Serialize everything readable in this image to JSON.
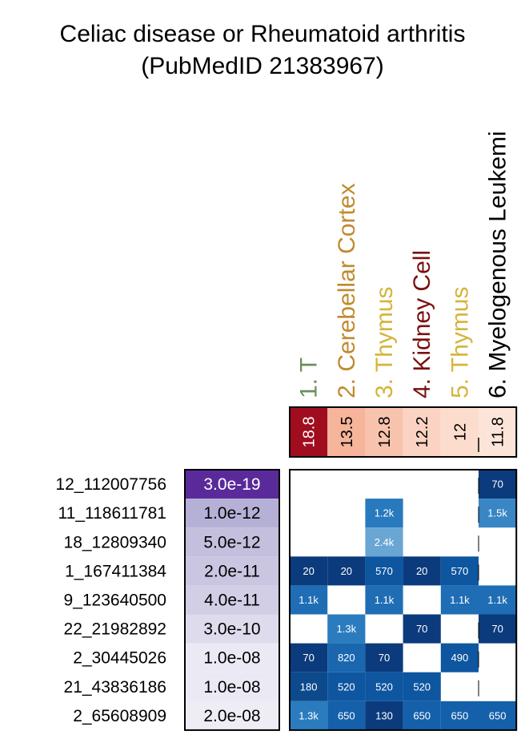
{
  "chart_data": {
    "type": "heatmap",
    "title": "Celiac disease or Rheumatoid arthritis",
    "subtitle": "(PubMedID 21383967)",
    "columns": [
      {
        "label": "1. T",
        "color": "#6a8f5a",
        "enrichment": "18.8",
        "fill": "#a00d1f",
        "text_color": "#ffffff"
      },
      {
        "label": "2. Cerebellar Cortex",
        "color": "#c08a2e",
        "enrichment": "13.5",
        "fill": "#f6b49a",
        "text_color": "#000000"
      },
      {
        "label": "3. Thymus",
        "color": "#d6b43a",
        "enrichment": "12.8",
        "fill": "#f8c3ac",
        "text_color": "#000000"
      },
      {
        "label": "4. Kidney Cell",
        "color": "#7a1010",
        "enrichment": "12.2",
        "fill": "#fbd3c2",
        "text_color": "#000000"
      },
      {
        "label": "5. Thymus",
        "color": "#d6b43a",
        "enrichment": "12",
        "fill": "#fcdccd",
        "text_color": "#000000"
      },
      {
        "label": "6. Myelogenous Leukemi",
        "color": "#000000",
        "enrichment": "11.8",
        "fill": "#fde4d8",
        "text_color": "#000000"
      }
    ],
    "rows": [
      {
        "snp": "12_112007756",
        "pvalue": "3.0e-19",
        "pfill": "#5a2a9a",
        "ptext": "#ffffff",
        "cells": [
          "",
          "",
          "",
          "",
          "",
          "70"
        ]
      },
      {
        "snp": "11_118611781",
        "pvalue": "1.0e-12",
        "pfill": "#b5b0d6",
        "ptext": "#000000",
        "cells": [
          "",
          "",
          "1.2k",
          "",
          "",
          "1.5k"
        ]
      },
      {
        "snp": "18_12809340",
        "pvalue": "5.0e-12",
        "pfill": "#c3bfdd",
        "ptext": "#000000",
        "cells": [
          "",
          "",
          "2.4k",
          "",
          "",
          ""
        ]
      },
      {
        "snp": "1_167411384",
        "pvalue": "2.0e-11",
        "pfill": "#cac6e2",
        "ptext": "#000000",
        "cells": [
          "20",
          "20",
          "570",
          "20",
          "570",
          ""
        ]
      },
      {
        "snp": "9_123640500",
        "pvalue": "4.0e-11",
        "pfill": "#d1cee6",
        "ptext": "#000000",
        "cells": [
          "1.1k",
          "",
          "1.1k",
          "",
          "1.1k",
          "1.1k"
        ]
      },
      {
        "snp": "22_21982892",
        "pvalue": "3.0e-10",
        "pfill": "#dddbec",
        "ptext": "#000000",
        "cells": [
          "",
          "1.3k",
          "",
          "70",
          "",
          "70"
        ]
      },
      {
        "snp": "2_30445026",
        "pvalue": "1.0e-08",
        "pfill": "#ebeaf4",
        "ptext": "#000000",
        "cells": [
          "70",
          "820",
          "70",
          "",
          "490",
          ""
        ]
      },
      {
        "snp": "21_43836186",
        "pvalue": "1.0e-08",
        "pfill": "#ebeaf4",
        "ptext": "#000000",
        "cells": [
          "180",
          "520",
          "520",
          "520",
          "",
          ""
        ]
      },
      {
        "snp": "2_65608909",
        "pvalue": "2.0e-08",
        "pfill": "#eeedf6",
        "ptext": "#000000",
        "cells": [
          "1.3k",
          "650",
          "130",
          "650",
          "650",
          "650"
        ]
      }
    ],
    "cell_colors": {
      "20": "#0b3b7c",
      "70": "#0b3b7c",
      "130": "#0b3b7c",
      "180": "#0c4a8c",
      "490": "#0e56a0",
      "520": "#0e56a0",
      "570": "#0e56a0",
      "650": "#1560aa",
      "820": "#1a67b0",
      "1.1k": "#1f6eb5",
      "1.2k": "#2879bd",
      "1.3k": "#2a7cbf",
      "1.5k": "#3886c4",
      "2.4k": "#6aa6d4"
    }
  }
}
